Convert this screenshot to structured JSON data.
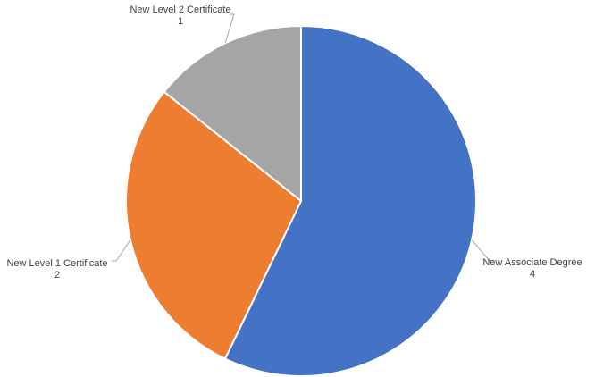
{
  "chart_data": {
    "type": "pie",
    "title": "",
    "categories": [
      "New Associate Degree",
      "New Level 1 Certificate",
      "New Level 2 Certificate"
    ],
    "values": [
      4,
      2,
      1
    ],
    "colors": [
      "#4472C4",
      "#ED7D31",
      "#A5A5A5"
    ],
    "start_angle_deg": 0,
    "direction": "clockwise",
    "legend": "none",
    "data_labels": "outside-with-leader-lines"
  }
}
